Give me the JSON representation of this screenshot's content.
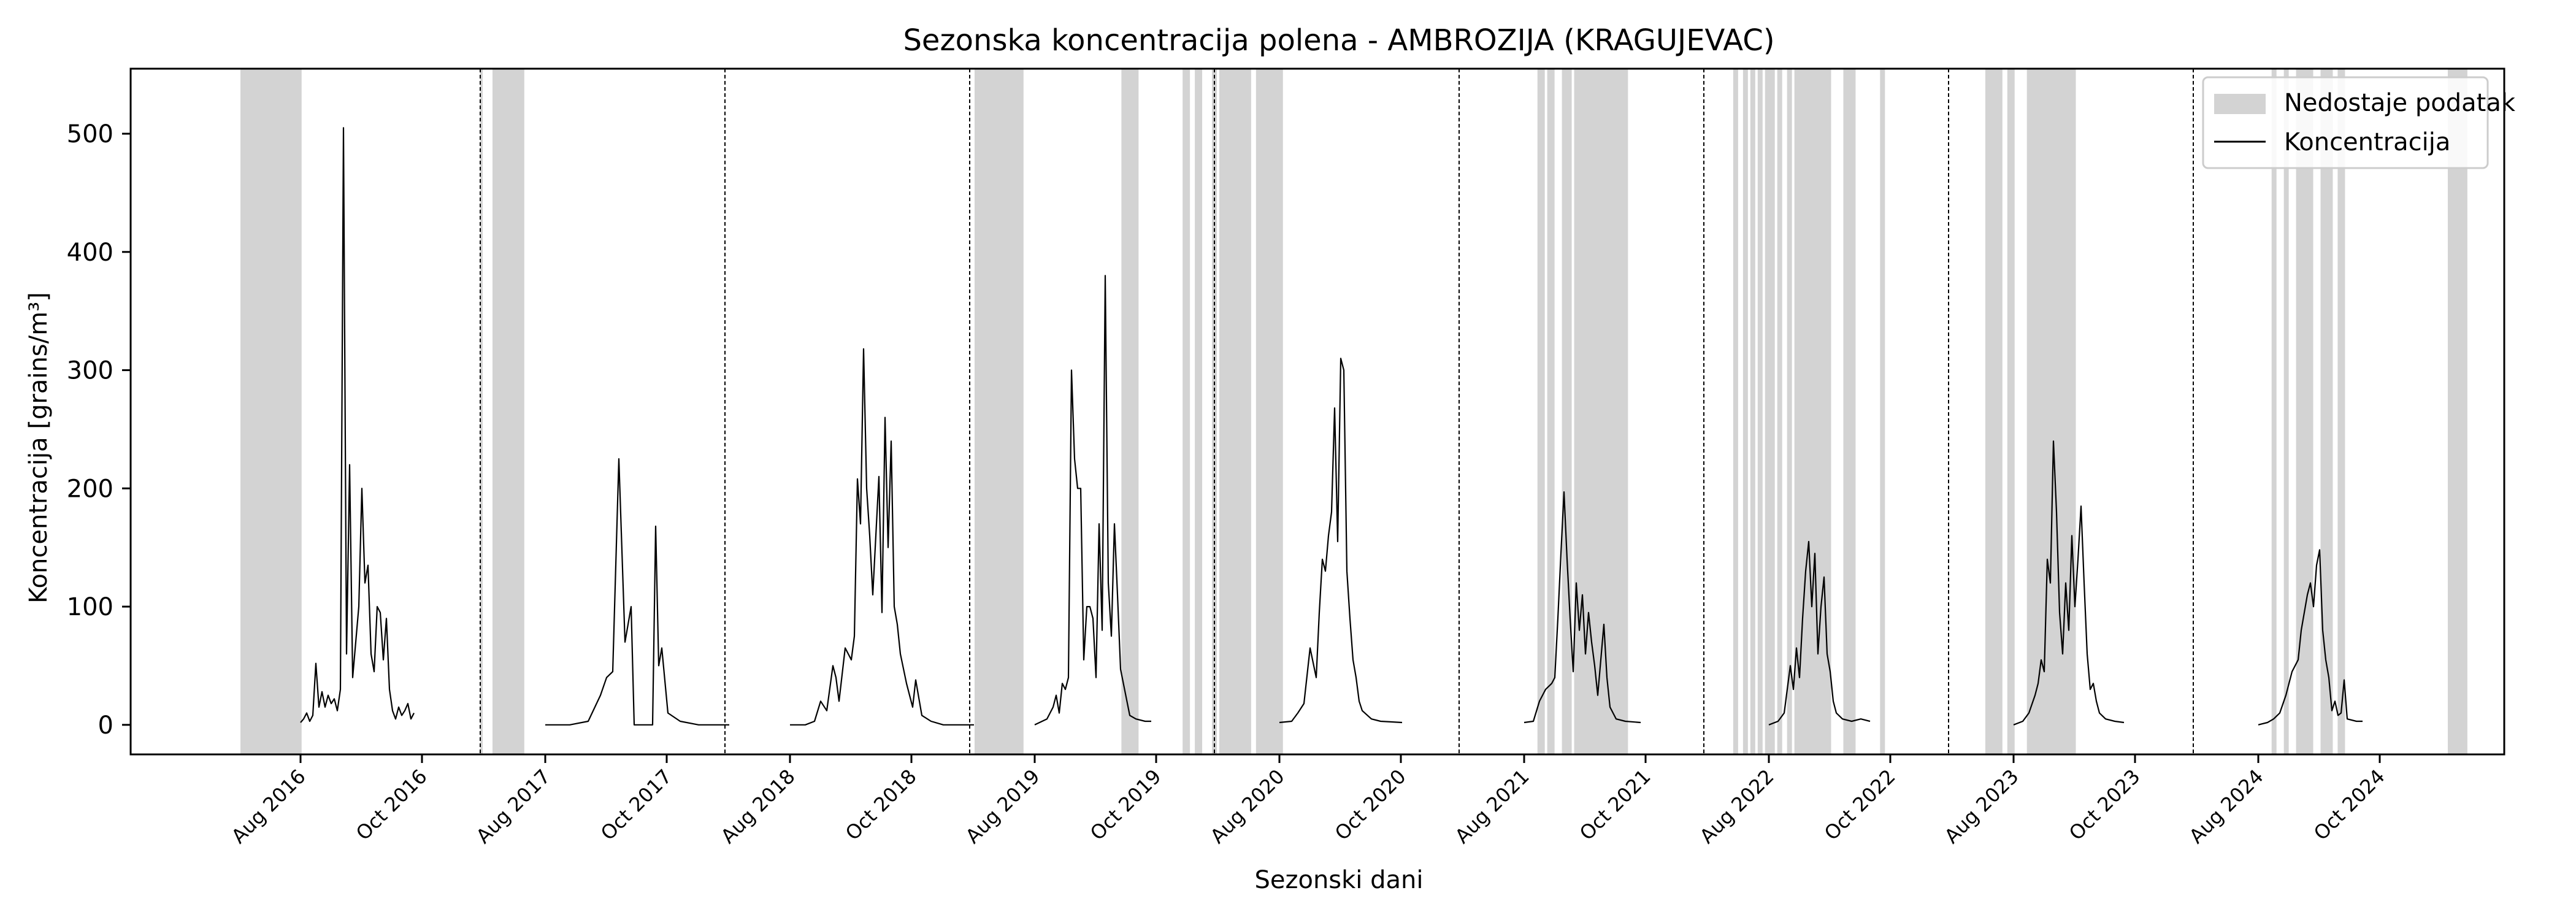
{
  "chart_data": {
    "type": "line",
    "title": "Sezonska koncentracija polena - AMBROZIJA (KRAGUJEVAC)",
    "xlabel": "Sezonski dani",
    "ylabel": "Koncentracija [grains/m³]",
    "ylim": [
      -25,
      555
    ],
    "yticks": [
      0,
      100,
      200,
      300,
      400,
      500
    ],
    "xticks": [
      "Aug 2016",
      "Oct 2016",
      "Aug 2017",
      "Oct 2017",
      "Aug 2018",
      "Oct 2018",
      "Aug 2019",
      "Oct 2019",
      "Aug 2020",
      "Oct 2020",
      "Aug 2021",
      "Oct 2021",
      "Aug 2022",
      "Oct 2022",
      "Aug 2023",
      "Oct 2023",
      "Aug 2024",
      "Oct 2024"
    ],
    "grid": false,
    "legend": {
      "position": "top-right",
      "missing_label": "Nedostaje podatak",
      "line_label": "Koncentracija"
    },
    "colors": {
      "line": "#000000",
      "missing": "#d3d3d3",
      "separator": "#000000"
    },
    "seasons": [
      {
        "year": 2016,
        "points": [
          [
            0,
            2
          ],
          [
            1,
            5
          ],
          [
            2,
            10
          ],
          [
            3,
            3
          ],
          [
            4,
            8
          ],
          [
            5,
            52
          ],
          [
            6,
            15
          ],
          [
            7,
            28
          ],
          [
            8,
            15
          ],
          [
            9,
            25
          ],
          [
            10,
            18
          ],
          [
            11,
            22
          ],
          [
            12,
            12
          ],
          [
            13,
            30
          ],
          [
            14,
            505
          ],
          [
            15,
            60
          ],
          [
            16,
            220
          ],
          [
            17,
            40
          ],
          [
            18,
            70
          ],
          [
            19,
            100
          ],
          [
            20,
            200
          ],
          [
            21,
            120
          ],
          [
            22,
            135
          ],
          [
            23,
            60
          ],
          [
            24,
            45
          ],
          [
            25,
            100
          ],
          [
            26,
            95
          ],
          [
            27,
            55
          ],
          [
            28,
            90
          ],
          [
            29,
            30
          ],
          [
            30,
            12
          ],
          [
            31,
            5
          ],
          [
            32,
            15
          ],
          [
            33,
            8
          ],
          [
            34,
            12
          ],
          [
            35,
            18
          ],
          [
            36,
            5
          ],
          [
            37,
            10
          ]
        ]
      },
      {
        "year": 2017,
        "points": [
          [
            0,
            0
          ],
          [
            8,
            0
          ],
          [
            14,
            3
          ],
          [
            18,
            25
          ],
          [
            20,
            40
          ],
          [
            22,
            45
          ],
          [
            24,
            225
          ],
          [
            26,
            70
          ],
          [
            28,
            100
          ],
          [
            29,
            0
          ],
          [
            35,
            0
          ],
          [
            36,
            168
          ],
          [
            37,
            50
          ],
          [
            38,
            65
          ],
          [
            40,
            10
          ],
          [
            44,
            3
          ],
          [
            50,
            0
          ],
          [
            60,
            0
          ]
        ]
      },
      {
        "year": 2018,
        "points": [
          [
            0,
            0
          ],
          [
            5,
            0
          ],
          [
            8,
            3
          ],
          [
            10,
            20
          ],
          [
            12,
            12
          ],
          [
            14,
            50
          ],
          [
            15,
            40
          ],
          [
            16,
            20
          ],
          [
            18,
            65
          ],
          [
            20,
            55
          ],
          [
            21,
            75
          ],
          [
            22,
            208
          ],
          [
            23,
            170
          ],
          [
            24,
            318
          ],
          [
            25,
            200
          ],
          [
            26,
            160
          ],
          [
            27,
            110
          ],
          [
            28,
            160
          ],
          [
            29,
            210
          ],
          [
            30,
            95
          ],
          [
            31,
            260
          ],
          [
            32,
            150
          ],
          [
            33,
            240
          ],
          [
            34,
            100
          ],
          [
            35,
            85
          ],
          [
            36,
            60
          ],
          [
            38,
            35
          ],
          [
            40,
            15
          ],
          [
            41,
            38
          ],
          [
            43,
            8
          ],
          [
            46,
            3
          ],
          [
            50,
            0
          ],
          [
            60,
            0
          ]
        ]
      },
      {
        "year": 2019,
        "points": [
          [
            0,
            0
          ],
          [
            4,
            5
          ],
          [
            6,
            15
          ],
          [
            7,
            25
          ],
          [
            8,
            10
          ],
          [
            9,
            35
          ],
          [
            10,
            30
          ],
          [
            11,
            40
          ],
          [
            12,
            300
          ],
          [
            13,
            225
          ],
          [
            14,
            200
          ],
          [
            15,
            200
          ],
          [
            16,
            55
          ],
          [
            17,
            100
          ],
          [
            18,
            100
          ],
          [
            19,
            90
          ],
          [
            20,
            40
          ],
          [
            21,
            170
          ],
          [
            22,
            80
          ],
          [
            23,
            380
          ],
          [
            24,
            120
          ],
          [
            25,
            75
          ],
          [
            26,
            170
          ],
          [
            27,
            110
          ],
          [
            28,
            47
          ],
          [
            31,
            8
          ],
          [
            33,
            5
          ],
          [
            36,
            3
          ],
          [
            38,
            3
          ]
        ]
      },
      {
        "year": 2020,
        "points": [
          [
            0,
            2
          ],
          [
            4,
            3
          ],
          [
            6,
            10
          ],
          [
            8,
            18
          ],
          [
            10,
            65
          ],
          [
            12,
            40
          ],
          [
            13,
            95
          ],
          [
            14,
            140
          ],
          [
            15,
            130
          ],
          [
            16,
            160
          ],
          [
            17,
            180
          ],
          [
            18,
            268
          ],
          [
            19,
            155
          ],
          [
            20,
            310
          ],
          [
            21,
            300
          ],
          [
            22,
            130
          ],
          [
            23,
            90
          ],
          [
            24,
            55
          ],
          [
            25,
            40
          ],
          [
            26,
            20
          ],
          [
            27,
            12
          ],
          [
            30,
            5
          ],
          [
            33,
            3
          ],
          [
            40,
            2
          ]
        ]
      },
      {
        "year": 2021,
        "points": [
          [
            0,
            2
          ],
          [
            3,
            3
          ],
          [
            5,
            20
          ],
          [
            7,
            30
          ],
          [
            9,
            35
          ],
          [
            10,
            40
          ],
          [
            11,
            90
          ],
          [
            12,
            145
          ],
          [
            13,
            197
          ],
          [
            14,
            140
          ],
          [
            15,
            90
          ],
          [
            16,
            45
          ],
          [
            17,
            120
          ],
          [
            18,
            80
          ],
          [
            19,
            110
          ],
          [
            20,
            60
          ],
          [
            21,
            95
          ],
          [
            22,
            70
          ],
          [
            23,
            50
          ],
          [
            24,
            25
          ],
          [
            25,
            55
          ],
          [
            26,
            85
          ],
          [
            27,
            40
          ],
          [
            28,
            15
          ],
          [
            30,
            5
          ],
          [
            33,
            3
          ],
          [
            38,
            2
          ]
        ]
      },
      {
        "year": 2022,
        "points": [
          [
            0,
            0
          ],
          [
            3,
            3
          ],
          [
            5,
            10
          ],
          [
            7,
            50
          ],
          [
            8,
            30
          ],
          [
            9,
            65
          ],
          [
            10,
            40
          ],
          [
            11,
            90
          ],
          [
            12,
            130
          ],
          [
            13,
            155
          ],
          [
            14,
            100
          ],
          [
            15,
            145
          ],
          [
            16,
            60
          ],
          [
            17,
            100
          ],
          [
            18,
            125
          ],
          [
            19,
            60
          ],
          [
            20,
            45
          ],
          [
            21,
            20
          ],
          [
            22,
            10
          ],
          [
            24,
            5
          ],
          [
            27,
            3
          ],
          [
            30,
            5
          ],
          [
            33,
            3
          ]
        ]
      },
      {
        "year": 2023,
        "points": [
          [
            0,
            0
          ],
          [
            3,
            3
          ],
          [
            5,
            10
          ],
          [
            7,
            25
          ],
          [
            8,
            35
          ],
          [
            9,
            55
          ],
          [
            10,
            45
          ],
          [
            11,
            140
          ],
          [
            12,
            120
          ],
          [
            13,
            240
          ],
          [
            14,
            180
          ],
          [
            15,
            95
          ],
          [
            16,
            60
          ],
          [
            17,
            120
          ],
          [
            18,
            80
          ],
          [
            19,
            160
          ],
          [
            20,
            100
          ],
          [
            21,
            140
          ],
          [
            22,
            185
          ],
          [
            23,
            120
          ],
          [
            24,
            60
          ],
          [
            25,
            30
          ],
          [
            26,
            35
          ],
          [
            27,
            20
          ],
          [
            28,
            10
          ],
          [
            30,
            5
          ],
          [
            33,
            3
          ],
          [
            36,
            2
          ]
        ]
      },
      {
        "year": 2024,
        "points": [
          [
            0,
            0
          ],
          [
            3,
            2
          ],
          [
            5,
            5
          ],
          [
            7,
            10
          ],
          [
            9,
            25
          ],
          [
            11,
            45
          ],
          [
            13,
            55
          ],
          [
            14,
            80
          ],
          [
            15,
            95
          ],
          [
            16,
            110
          ],
          [
            17,
            120
          ],
          [
            18,
            100
          ],
          [
            19,
            135
          ],
          [
            20,
            148
          ],
          [
            21,
            80
          ],
          [
            22,
            55
          ],
          [
            23,
            40
          ],
          [
            24,
            12
          ],
          [
            25,
            20
          ],
          [
            26,
            8
          ],
          [
            27,
            10
          ],
          [
            28,
            38
          ],
          [
            29,
            5
          ],
          [
            32,
            3
          ],
          [
            34,
            3
          ]
        ]
      }
    ],
    "missing_ranges": [
      [
        2016.0,
        2016.25
      ],
      [
        2016.98,
        2016.99
      ],
      [
        2017.03,
        2017.16
      ],
      [
        2019.0,
        2019.2
      ],
      [
        2019.6,
        2019.67
      ],
      [
        2019.85,
        2019.88
      ],
      [
        2019.9,
        2019.93
      ],
      [
        2019.97,
        2019.99
      ],
      [
        2020.0,
        2020.13
      ],
      [
        2020.15,
        2020.26
      ],
      [
        2020.03,
        2020.05
      ],
      [
        2021.3,
        2021.33
      ],
      [
        2021.34,
        2021.37
      ],
      [
        2021.4,
        2021.44
      ],
      [
        2021.45,
        2021.67
      ],
      [
        2022.1,
        2022.12
      ],
      [
        2022.14,
        2022.16
      ],
      [
        2022.17,
        2022.19
      ],
      [
        2022.2,
        2022.22
      ],
      [
        2022.23,
        2022.27
      ],
      [
        2022.28,
        2022.3
      ],
      [
        2022.32,
        2022.34
      ],
      [
        2022.35,
        2022.5
      ],
      [
        2022.55,
        2022.6
      ],
      [
        2022.7,
        2022.72
      ],
      [
        2023.13,
        2023.2
      ],
      [
        2023.22,
        2023.25
      ],
      [
        2023.3,
        2023.5
      ],
      [
        2024.3,
        2024.32
      ],
      [
        2024.35,
        2024.37
      ],
      [
        2024.4,
        2024.47
      ],
      [
        2024.5,
        2024.55
      ],
      [
        2024.57,
        2024.6
      ],
      [
        2025.02,
        2025.1
      ]
    ]
  }
}
